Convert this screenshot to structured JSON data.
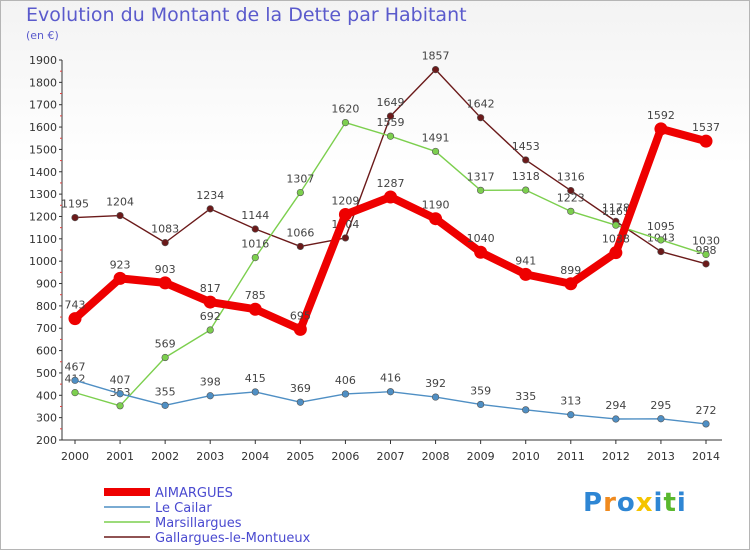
{
  "chart_data": {
    "type": "line",
    "title": "Evolution du Montant de la Dette par Habitant",
    "subtitle": "(en €)",
    "x": [
      "2000",
      "2001",
      "2002",
      "2003",
      "2004",
      "2005",
      "2006",
      "2007",
      "2008",
      "2009",
      "2010",
      "2011",
      "2012",
      "2013",
      "2014"
    ],
    "ylim": [
      200,
      1900
    ],
    "yticks": [
      200,
      300,
      400,
      500,
      600,
      700,
      800,
      900,
      1000,
      1100,
      1200,
      1300,
      1400,
      1500,
      1600,
      1700,
      1800,
      1900
    ],
    "grid": false,
    "legend_position": "bottom-left",
    "series": [
      {
        "name": "AIMARGUES",
        "color": "#ee0000",
        "values": [
          743,
          923,
          903,
          817,
          785,
          695,
          1209,
          1287,
          1190,
          1040,
          941,
          899,
          1038,
          1592,
          1537
        ]
      },
      {
        "name": "Le Cailar",
        "color": "#4f8fc4",
        "values": [
          467,
          407,
          355,
          398,
          415,
          369,
          406,
          416,
          392,
          359,
          335,
          313,
          294,
          295,
          272
        ]
      },
      {
        "name": "Marsillargues",
        "color": "#7ccf4e",
        "values": [
          412,
          353,
          569,
          692,
          1016,
          1307,
          1620,
          1559,
          1491,
          1317,
          1318,
          1223,
          1161,
          1095,
          1030
        ]
      },
      {
        "name": "Gallargues-le-Montueux",
        "color": "#6b1a1a",
        "values": [
          1195,
          1204,
          1083,
          1234,
          1144,
          1066,
          1104,
          1649,
          1857,
          1642,
          1453,
          1316,
          1178,
          1043,
          988
        ]
      }
    ]
  },
  "logo": {
    "letters": [
      "P",
      "r",
      "o",
      "x",
      "i",
      "t",
      "i"
    ],
    "colors": [
      "#2e86d4",
      "#f08a1e",
      "#2e86d4",
      "#f5c400",
      "#2e86d4",
      "#5ab82e",
      "#2e86d4"
    ]
  }
}
